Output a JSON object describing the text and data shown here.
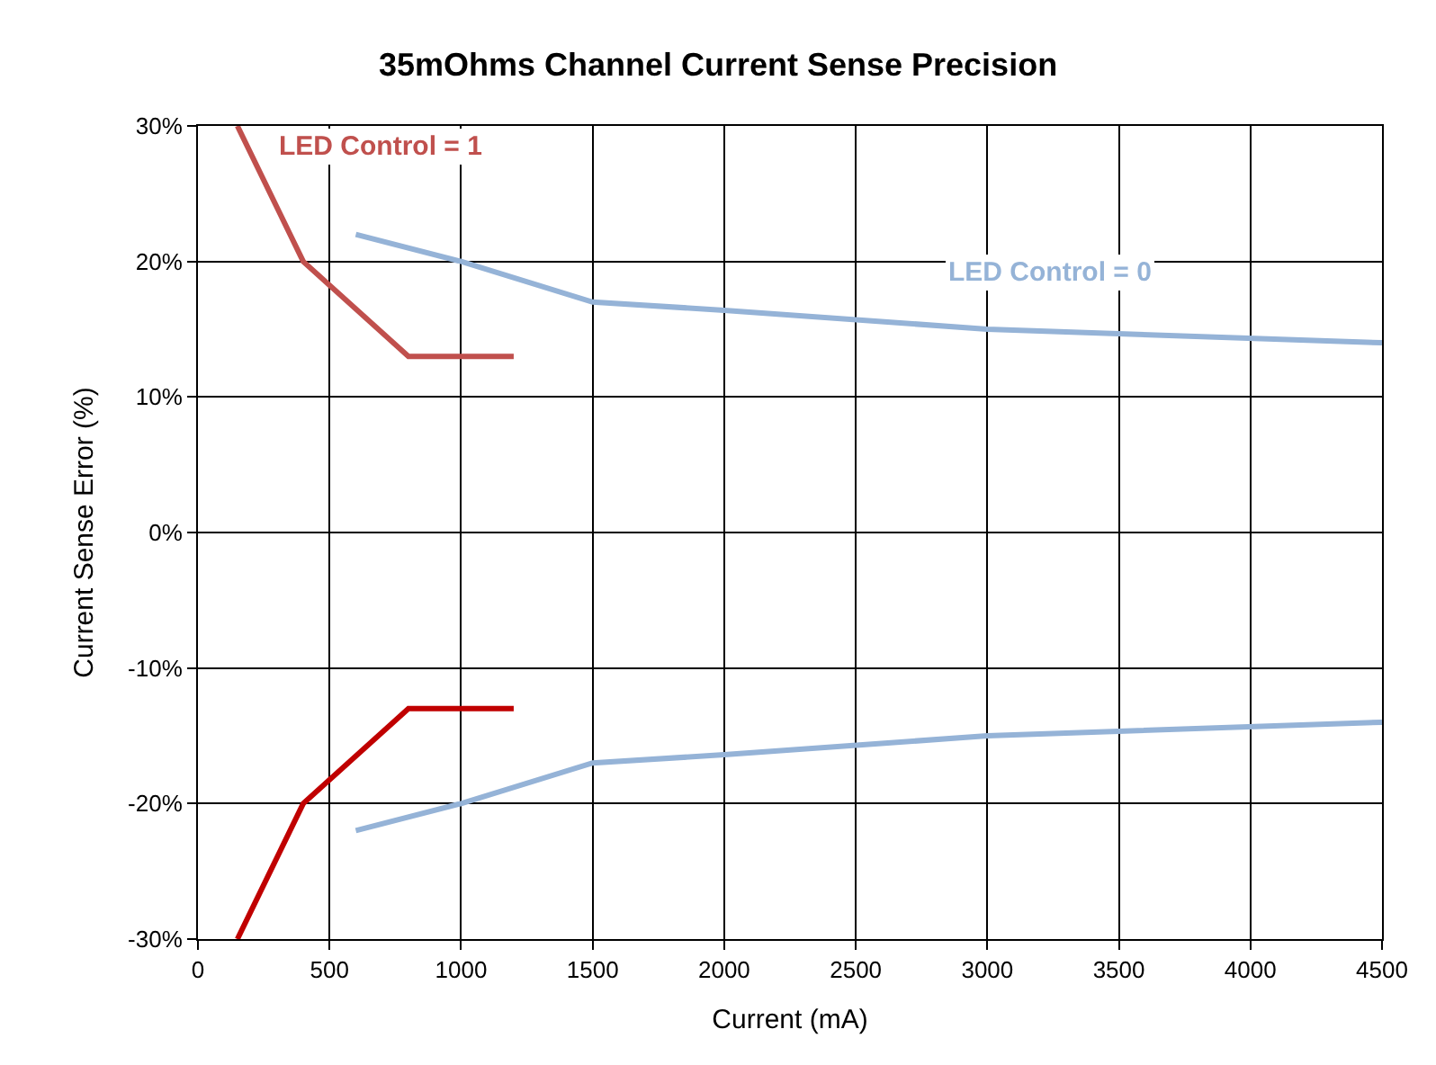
{
  "chart_data": {
    "type": "line",
    "title": "35mOhms Channel Current Sense Precision",
    "xlabel": "Current (mA)",
    "ylabel": "Current Sense Error (%)",
    "xlim": [
      0,
      4500
    ],
    "xticks": [
      0,
      500,
      1000,
      1500,
      2000,
      2500,
      3000,
      3500,
      4000,
      4500
    ],
    "ylim": [
      -30,
      30
    ],
    "yticks": [
      {
        "value": -30,
        "label": "-30%"
      },
      {
        "value": -20,
        "label": "-20%"
      },
      {
        "value": -10,
        "label": "-10%"
      },
      {
        "value": 0,
        "label": "0%"
      },
      {
        "value": 10,
        "label": "10%"
      },
      {
        "value": 20,
        "label": "20%"
      },
      {
        "value": 30,
        "label": "30%"
      }
    ],
    "grid": true,
    "marker": "none",
    "line_style": "solid",
    "series": [
      {
        "color": "#c0504d",
        "x": [
          150,
          400,
          800,
          1200
        ],
        "values": [
          30,
          20,
          13,
          13
        ]
      },
      {
        "color": "#95b3d7",
        "x": [
          600,
          1000,
          1500,
          2000,
          3000,
          4500
        ],
        "values": [
          22,
          20,
          17,
          16.4,
          15,
          14
        ]
      },
      {
        "color": "#c00000",
        "x": [
          150,
          400,
          800,
          1200
        ],
        "values": [
          -30,
          -20,
          -13,
          -13
        ]
      },
      {
        "color": "#95b3d7",
        "x": [
          600,
          1000,
          1500,
          2000,
          3000,
          4500
        ],
        "values": [
          -22,
          -20,
          -17,
          -16.4,
          -15,
          -14
        ]
      }
    ],
    "annotations": [
      "LED Control = 1",
      "LED Control = 0"
    ]
  }
}
